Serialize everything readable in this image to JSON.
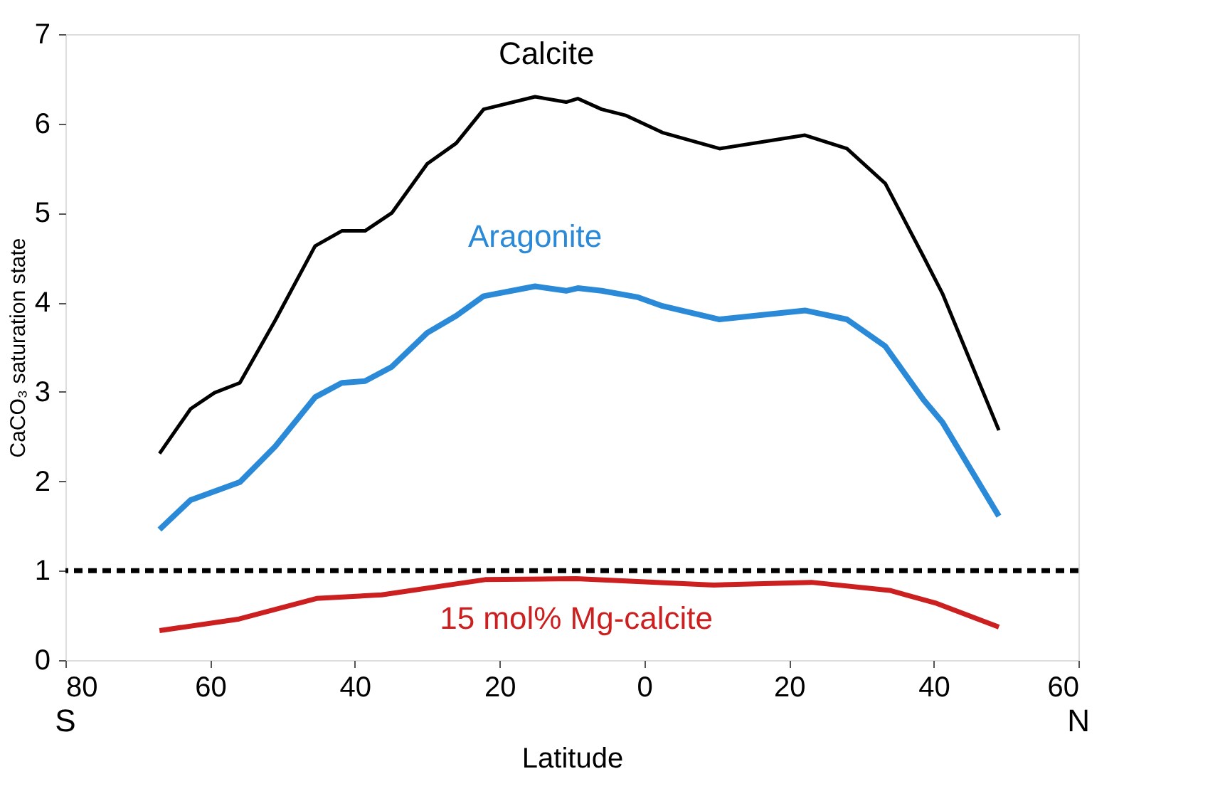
{
  "chart_data": {
    "type": "line",
    "xlabel": "Latitude",
    "ylabel": "CaCO₃ saturation state",
    "xlim": [
      -80,
      60
    ],
    "ylim": [
      0,
      7
    ],
    "xticks": [
      {
        "value": -80,
        "label": "80"
      },
      {
        "value": -60,
        "label": "60"
      },
      {
        "value": -40,
        "label": "40"
      },
      {
        "value": -20,
        "label": "20"
      },
      0,
      20,
      40,
      60
    ],
    "yticks": [
      0,
      1,
      2,
      3,
      4,
      5,
      6,
      7
    ],
    "grid": false,
    "marker": "none",
    "line_style": "solid",
    "series": [
      {
        "name": "Calcite",
        "color": "#000000",
        "x": [
          -67,
          -62.7,
          -59.4,
          -55.9,
          -51,
          -45.5,
          -41.8,
          -38.6,
          -34.9,
          -30,
          -26,
          -22.2,
          -15.1,
          -10.8,
          -9.2,
          -5.9,
          -2.5,
          2.5,
          10.4,
          22.2,
          28,
          33.3,
          38.6,
          41.2,
          49
        ],
        "values": [
          2.31,
          2.81,
          2.99,
          3.1,
          3.8,
          4.63,
          4.8,
          4.8,
          5.0,
          5.55,
          5.78,
          6.16,
          6.3,
          6.24,
          6.28,
          6.16,
          6.09,
          5.9,
          5.72,
          5.87,
          5.72,
          5.33,
          4.51,
          4.1,
          2.57
        ]
      },
      {
        "name": "Aragonite",
        "color": "#2a8ad8",
        "x": [
          -67,
          -62.7,
          -55.9,
          -51,
          -45.5,
          -41.8,
          -38.6,
          -34.9,
          -30,
          -26,
          -22.2,
          -15.1,
          -10.8,
          -9.2,
          -5.9,
          -1,
          2.5,
          10.4,
          22.2,
          28,
          33.3,
          38.6,
          41.2,
          49
        ],
        "values": [
          1.46,
          1.79,
          1.99,
          2.39,
          2.94,
          3.1,
          3.12,
          3.28,
          3.66,
          3.85,
          4.07,
          4.18,
          4.13,
          4.16,
          4.13,
          4.06,
          3.96,
          3.81,
          3.91,
          3.81,
          3.51,
          2.91,
          2.66,
          1.61
        ]
      },
      {
        "name": "15 mol% Mg-calcite",
        "color": "#cc1f1f",
        "x": [
          -67,
          -56,
          -45.3,
          -36.3,
          -22,
          -9.4,
          9.6,
          23.1,
          33.9,
          40.2,
          49
        ],
        "values": [
          0.33,
          0.46,
          0.69,
          0.73,
          0.9,
          0.91,
          0.84,
          0.87,
          0.78,
          0.64,
          0.37
        ]
      }
    ],
    "ref_lines": [
      {
        "axis": "y",
        "value": 1,
        "label": null,
        "color": "#000000",
        "line_style": "dashed"
      }
    ],
    "annotations": [
      "S",
      "N"
    ]
  }
}
